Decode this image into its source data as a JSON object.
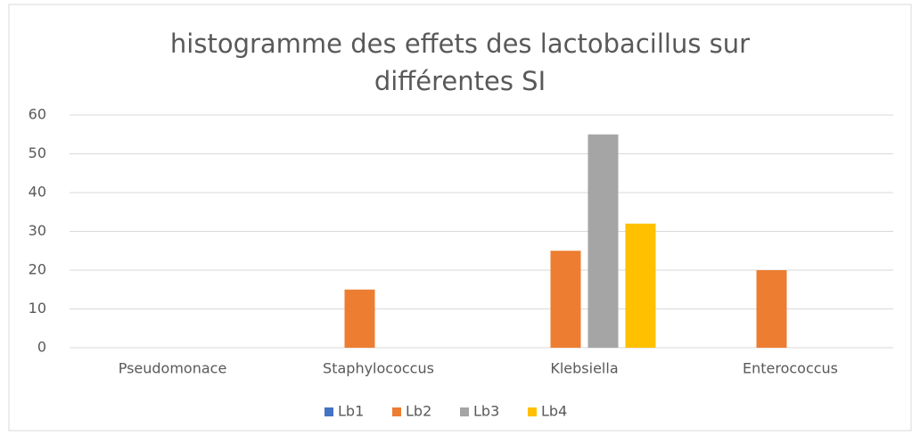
{
  "chart_data": {
    "type": "bar",
    "title": "histogramme des effets des lactobacillus sur différentes SI",
    "categories": [
      "Pseudomonace",
      "Staphylococcus",
      "Klebsiella",
      "Enterococcus"
    ],
    "series": [
      {
        "name": "Lb1",
        "color": "#4472c4",
        "values": [
          0,
          0,
          0,
          0
        ]
      },
      {
        "name": "Lb2",
        "color": "#ed7d31",
        "values": [
          0,
          15,
          25,
          20
        ]
      },
      {
        "name": "Lb3",
        "color": "#a5a5a5",
        "values": [
          0,
          0,
          55,
          0
        ]
      },
      {
        "name": "Lb4",
        "color": "#ffc000",
        "values": [
          0,
          0,
          32,
          0
        ]
      }
    ],
    "ylim": [
      0,
      60
    ],
    "yticks": [
      0,
      10,
      20,
      30,
      40,
      50,
      60
    ],
    "grid": true,
    "legend": "bottom"
  }
}
